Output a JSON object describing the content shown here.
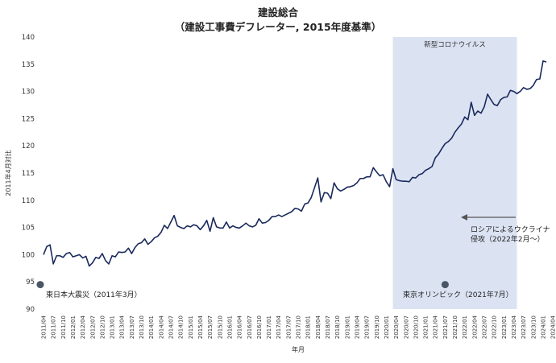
{
  "chart_data": {
    "type": "line",
    "title": "建設総合",
    "subtitle": "（建設工事費デフレーター, 2015年度基準）",
    "xlabel": "年月",
    "ylabel": "2011年4月対比",
    "ylim": [
      90,
      140
    ],
    "yticks": [
      90,
      95,
      100,
      105,
      110,
      115,
      120,
      125,
      130,
      135,
      140
    ],
    "grid": false,
    "xtick_labels": [
      "2011/04",
      "2011/07",
      "2011/10",
      "2012/01",
      "2012/04",
      "2012/07",
      "2012/10",
      "2013/01",
      "2013/04",
      "2013/07",
      "2013/10",
      "2014/01",
      "2014/04",
      "2014/07",
      "2014/10",
      "2015/01",
      "2015/04",
      "2015/07",
      "2015/10",
      "2016/01",
      "2016/04",
      "2016/07",
      "2016/10",
      "2017/01",
      "2017/04",
      "2017/07",
      "2017/10",
      "2018/01",
      "2018/04",
      "2018/07",
      "2018/10",
      "2019/01",
      "2019/04",
      "2019/07",
      "2019/10",
      "2020/01",
      "2020/04",
      "2020/07",
      "2020/10",
      "2021/01",
      "2021/04",
      "2021/07",
      "2021/10",
      "2022/01",
      "2022/04",
      "2022/07",
      "2022/10",
      "2023/01",
      "2023/04",
      "2023/07",
      "2023/10",
      "2024/01",
      "2024/04"
    ],
    "series": [
      {
        "values": [
          100.0,
          101.5,
          101.8,
          98.3,
          99.8,
          99.8,
          99.5,
          100.2,
          100.4,
          99.6,
          99.8,
          100.0,
          99.4,
          99.7,
          97.9,
          98.5,
          99.5,
          99.3,
          100.2,
          98.9,
          98.3,
          99.8,
          99.6,
          100.5,
          100.4,
          100.5,
          101.2,
          100.2,
          101.3,
          102.0,
          102.2,
          102.9,
          101.9,
          102.4,
          103.1,
          103.4,
          104.1,
          105.4,
          104.8,
          106.0,
          107.2,
          105.3,
          105.0,
          104.8,
          105.3,
          105.1,
          105.5,
          105.3,
          104.6,
          105.3,
          106.3,
          104.3,
          106.8,
          105.1,
          104.9,
          104.9,
          106.0,
          104.9,
          105.3,
          105.0,
          104.9,
          105.3,
          105.8,
          105.3,
          105.1,
          105.4,
          106.6,
          105.8,
          105.9,
          106.3,
          107.0,
          107.0,
          107.3,
          107.0,
          107.3,
          107.6,
          107.9,
          108.5,
          108.4,
          108.0,
          109.3,
          109.5,
          110.5,
          112.3,
          114.1,
          109.7,
          111.4,
          111.3,
          110.3,
          113.2,
          112.1,
          111.7,
          112.0,
          112.4,
          112.5,
          112.7,
          113.2,
          114.0,
          114.0,
          114.3,
          114.3,
          116.0,
          115.2,
          114.5,
          114.7,
          113.4,
          112.5,
          115.8,
          113.8,
          113.6,
          113.5,
          113.5,
          113.4,
          114.2,
          114.1,
          114.7,
          114.9,
          115.5,
          115.8,
          116.2,
          117.8,
          118.5,
          119.5,
          120.4,
          120.8,
          121.4,
          122.5,
          123.3,
          124.0,
          125.3,
          124.8,
          128.0,
          125.6,
          126.4,
          126.0,
          127.2,
          129.5,
          128.5,
          127.6,
          127.4,
          128.5,
          128.9,
          129.0,
          130.2,
          130.0,
          129.6,
          130.0,
          130.7,
          130.4,
          130.5,
          131.1,
          132.2,
          132.3,
          135.6,
          135.4
        ]
      }
    ],
    "highlight": {
      "label": "新型コロナウイルス",
      "start": "2020/03",
      "end": "2023/05"
    },
    "annotations": [
      {
        "label": "東日本大震災（2011年3月）",
        "x": "2011/03",
        "y": 94.5
      },
      {
        "label": "東京オリンピック（2021年7月）",
        "x": "2021/07",
        "y": 94.5
      },
      {
        "label_line1": "ロシアによるウクライナ",
        "label_line2": "侵攻（2022年2月～）"
      }
    ],
    "colors": {
      "line": "#1a2a5c",
      "highlight": "#dbe3f3",
      "marker": "#4a5566",
      "arrow": "#555555"
    }
  }
}
